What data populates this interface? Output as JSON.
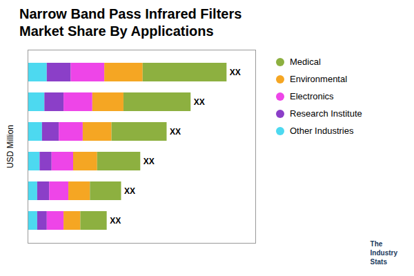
{
  "chart_data": {
    "type": "bar",
    "orientation": "horizontal",
    "stacked": true,
    "title": "Narrow Band Pass Infrared Filters\nMarket Share By Applications",
    "ylabel": "USD Million",
    "categories": [
      null,
      null,
      null,
      null,
      null,
      null
    ],
    "series": [
      {
        "name": "Other Industries",
        "color": "#4DD9F0",
        "values": [
          0.08,
          0.07,
          0.06,
          0.05,
          0.04,
          0.04
        ]
      },
      {
        "name": "Research Institute",
        "color": "#8B3FC8",
        "values": [
          0.1,
          0.08,
          0.07,
          0.05,
          0.05,
          0.04
        ]
      },
      {
        "name": "Electronics",
        "color": "#EE45E8",
        "values": [
          0.14,
          0.12,
          0.1,
          0.09,
          0.08,
          0.07
        ]
      },
      {
        "name": "Environmental",
        "color": "#F5A623",
        "values": [
          0.16,
          0.13,
          0.12,
          0.1,
          0.09,
          0.07
        ]
      },
      {
        "name": "Medical",
        "color": "#8DB040",
        "values": [
          0.35,
          0.28,
          0.23,
          0.18,
          0.13,
          0.11
        ]
      }
    ],
    "bar_labels": [
      "XX",
      "XX",
      "XX",
      "XX",
      "XX",
      "XX"
    ],
    "annotations": [
      "The\nIndustry\nStats"
    ],
    "xlim": [
      0,
      0.95
    ],
    "tick_labels": false,
    "grid": false,
    "legend": "upper right"
  }
}
